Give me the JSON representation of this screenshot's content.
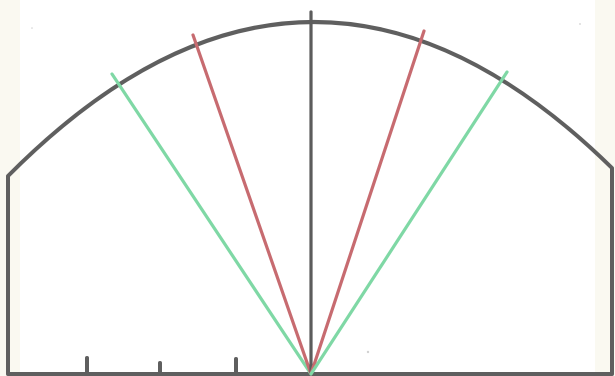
{
  "colors": {
    "outline": "#5f5f5f",
    "center_line": "#5c5c5c",
    "red_lines": "#c76b70",
    "green_lines": "#7fd8a5",
    "paper_tint": "#f3f1df"
  },
  "diagram": {
    "shape": "semicircular-fan",
    "rays_from_base_center": [
      {
        "name": "green-left",
        "color_key": "green_lines",
        "direction": "upper-left"
      },
      {
        "name": "red-left",
        "color_key": "red_lines",
        "direction": "up-left"
      },
      {
        "name": "center",
        "color_key": "center_line",
        "direction": "vertical"
      },
      {
        "name": "red-right",
        "color_key": "red_lines",
        "direction": "up-right"
      },
      {
        "name": "green-right",
        "color_key": "green_lines",
        "direction": "upper-right"
      }
    ],
    "base_tick_marks_count": 3
  }
}
